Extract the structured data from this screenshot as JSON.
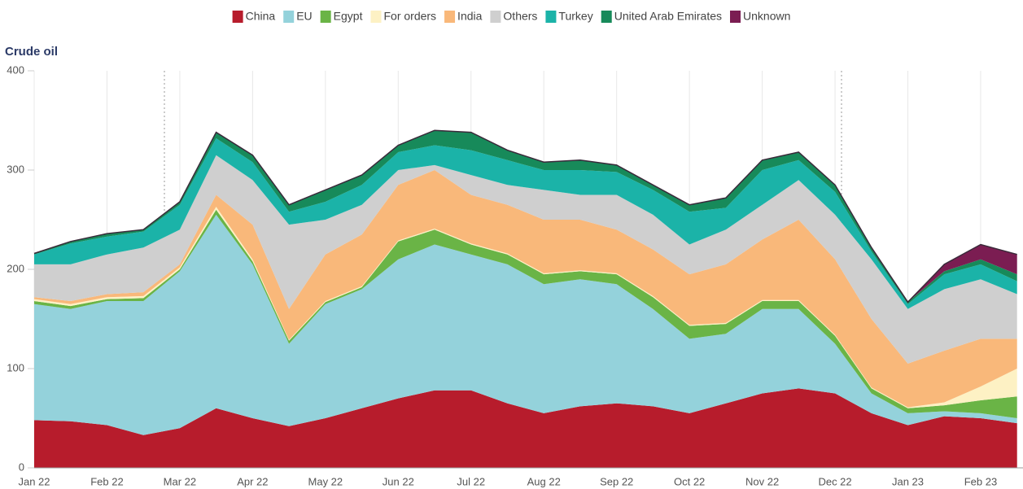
{
  "chart_data": {
    "type": "stacked_area",
    "title": "Crude oil",
    "categories": [
      "Jan 22",
      null,
      "Feb 22",
      null,
      "Mar 22",
      null,
      "Apr 22",
      null,
      "May 22",
      null,
      "Jun 22",
      null,
      "Jul 22",
      null,
      "Aug 22",
      null,
      "Sep 22",
      null,
      "Oct 22",
      null,
      "Nov 22",
      null,
      "Dec 22",
      null,
      "Jan 23",
      null,
      "Feb 23",
      null
    ],
    "series": [
      {
        "name": "China",
        "color": "#b71c2c",
        "values": [
          48,
          47,
          43,
          33,
          40,
          60,
          50,
          42,
          50,
          60,
          70,
          78,
          78,
          65,
          55,
          62,
          65,
          62,
          55,
          65,
          75,
          80,
          75,
          55,
          43,
          52,
          50,
          45
        ]
      },
      {
        "name": "EU",
        "color": "#94d2db",
        "values": [
          117,
          113,
          125,
          135,
          158,
          195,
          155,
          83,
          115,
          120,
          140,
          147,
          137,
          140,
          130,
          128,
          120,
          98,
          75,
          70,
          85,
          80,
          50,
          20,
          12,
          5,
          5,
          5
        ]
      },
      {
        "name": "Egypt",
        "color": "#6ab446",
        "values": [
          3,
          3,
          2,
          3,
          2,
          5,
          3,
          3,
          2,
          2,
          18,
          15,
          10,
          10,
          10,
          8,
          10,
          12,
          13,
          10,
          8,
          8,
          8,
          5,
          5,
          6,
          13,
          22
        ]
      },
      {
        "name": "For orders",
        "color": "#fdf1c4",
        "values": [
          2,
          2,
          2,
          2,
          2,
          3,
          2,
          1,
          1,
          1,
          1,
          1,
          1,
          1,
          1,
          1,
          1,
          1,
          1,
          1,
          1,
          1,
          1,
          1,
          1,
          3,
          14,
          28
        ]
      },
      {
        "name": "India",
        "color": "#f9b87a",
        "values": [
          2,
          3,
          3,
          4,
          3,
          12,
          35,
          31,
          47,
          52,
          56,
          59,
          49,
          49,
          54,
          51,
          44,
          47,
          51,
          59,
          61,
          81,
          76,
          69,
          44,
          52,
          48,
          30
        ]
      },
      {
        "name": "Others",
        "color": "#cfcfcf",
        "values": [
          33,
          37,
          40,
          45,
          35,
          40,
          45,
          85,
          35,
          30,
          15,
          5,
          20,
          20,
          30,
          25,
          35,
          35,
          30,
          35,
          35,
          40,
          45,
          60,
          55,
          62,
          60,
          45
        ]
      },
      {
        "name": "Turkey",
        "color": "#1bb3a8",
        "values": [
          10,
          21,
          18,
          16,
          25,
          17,
          18,
          13,
          18,
          20,
          18,
          20,
          25,
          25,
          20,
          25,
          23,
          25,
          33,
          22,
          35,
          20,
          23,
          8,
          5,
          15,
          15,
          13
        ]
      },
      {
        "name": "United Arab Emirates",
        "color": "#178a5a",
        "values": [
          1,
          2,
          3,
          2,
          3,
          6,
          7,
          7,
          12,
          10,
          7,
          15,
          18,
          10,
          8,
          10,
          7,
          5,
          7,
          10,
          10,
          8,
          7,
          4,
          2,
          3,
          5,
          7
        ]
      },
      {
        "name": "Unknown",
        "color": "#7b1d52",
        "values": [
          0,
          0,
          0,
          0,
          0,
          0,
          0,
          0,
          0,
          0,
          0,
          0,
          0,
          0,
          0,
          0,
          0,
          0,
          0,
          0,
          0,
          0,
          0,
          0,
          0,
          7,
          15,
          20
        ]
      }
    ],
    "ylim": [
      0,
      400
    ],
    "yticks": [
      0,
      100,
      200,
      300,
      400
    ],
    "grid": true,
    "legend": "top"
  }
}
